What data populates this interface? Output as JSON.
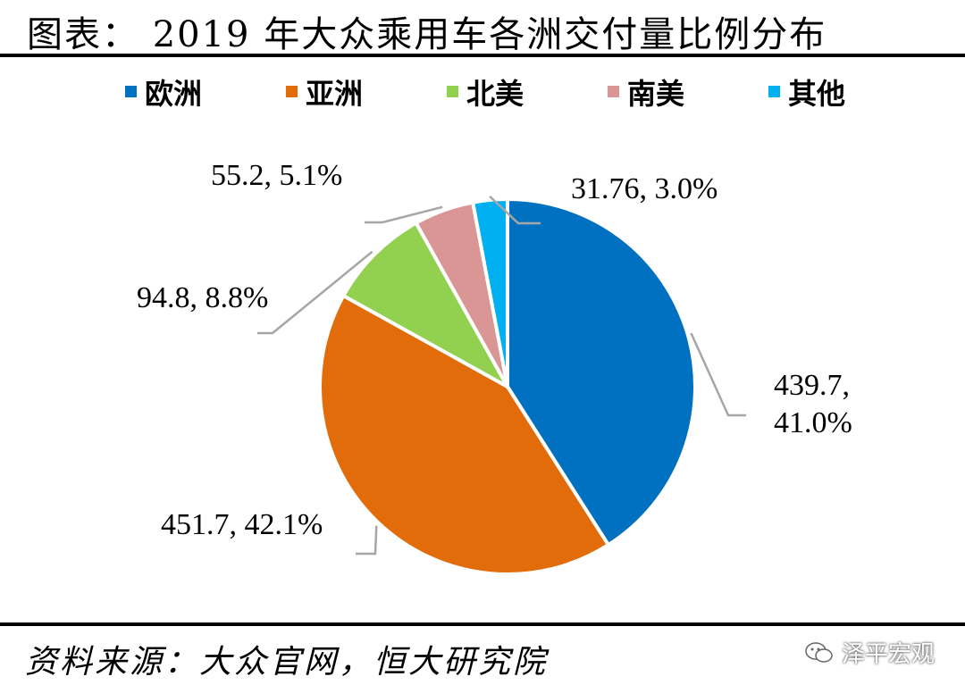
{
  "header": {
    "title": "图表： 2019 年大众乘用车各洲交付量比例分布"
  },
  "footer": {
    "source": "资料来源：大众官网，恒大研究院",
    "watermark": "泽平宏观",
    "watermark_icon": "wechat-icon"
  },
  "chart_data": {
    "type": "pie",
    "title": "2019 年大众乘用车各洲交付量比例分布",
    "legend_position": "top",
    "slices": [
      {
        "name": "欧洲",
        "value": 439.7,
        "percent": "41.0%",
        "label": "439.7,|41.0%",
        "color": "#0070C0"
      },
      {
        "name": "亚洲",
        "value": 451.7,
        "percent": "42.1%",
        "label": "451.7, 42.1%",
        "color": "#E36C0A"
      },
      {
        "name": "北美",
        "value": 94.8,
        "percent": "8.8%",
        "label": "94.8, 8.8%",
        "color": "#92D050"
      },
      {
        "name": "南美",
        "value": 55.2,
        "percent": "5.1%",
        "label": "55.2, 5.1%",
        "color": "#D99694"
      },
      {
        "name": "其他",
        "value": 31.76,
        "percent": "3.0%",
        "label": "31.76, 3.0%",
        "color": "#00B0F0"
      }
    ]
  }
}
